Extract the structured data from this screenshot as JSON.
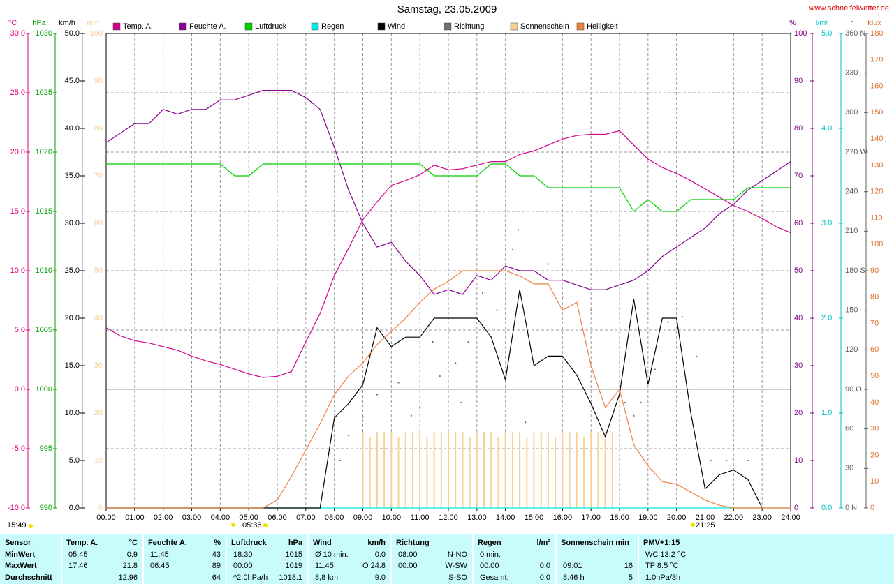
{
  "chart_data": {
    "type": "line",
    "title": "Samstag, 23.05.2009",
    "site": "www.schneifelwetter.de",
    "annotations": [
      "15:49",
      "05:36",
      "21:25"
    ],
    "xlim": [
      0,
      24
    ],
    "xticks": [
      {
        "value": 0,
        "label": "00:00"
      },
      {
        "value": 1,
        "label": "01:00"
      },
      {
        "value": 2,
        "label": "02:00"
      },
      {
        "value": 3,
        "label": "03:00"
      },
      {
        "value": 4,
        "label": "04:00"
      },
      {
        "value": 5,
        "label": "05:00"
      },
      {
        "value": 6,
        "label": "06:00"
      },
      {
        "value": 7,
        "label": "07:00"
      },
      {
        "value": 8,
        "label": "08:00"
      },
      {
        "value": 9,
        "label": "09:00"
      },
      {
        "value": 10,
        "label": "10:00"
      },
      {
        "value": 11,
        "label": "11:00"
      },
      {
        "value": 12,
        "label": "12:00"
      },
      {
        "value": 13,
        "label": "13:00"
      },
      {
        "value": 14,
        "label": "14:00"
      },
      {
        "value": 15,
        "label": "15:00"
      },
      {
        "value": 16,
        "label": "16:00"
      },
      {
        "value": 17,
        "label": "17:00"
      },
      {
        "value": 18,
        "label": "18:00"
      },
      {
        "value": 19,
        "label": "19:00"
      },
      {
        "value": 20,
        "label": "20:00"
      },
      {
        "value": 21,
        "label": "21:00"
      },
      {
        "value": 22,
        "label": "22:00"
      },
      {
        "value": 23,
        "label": "23:00"
      },
      {
        "value": 24,
        "label": "24:00"
      }
    ],
    "grid": true,
    "grid_axis": 0,
    "axes": [
      {
        "unit": "°C",
        "side": "left",
        "color": "#e0007f",
        "lim": [
          -10,
          30
        ],
        "ticks": [
          {
            "value": 30,
            "label": "30.0"
          },
          {
            "value": 25,
            "label": "25.0"
          },
          {
            "value": 20,
            "label": "20.0"
          },
          {
            "value": 15,
            "label": "15.0"
          },
          {
            "value": 10,
            "label": "10.0"
          },
          {
            "value": 5,
            "label": "5.0"
          },
          {
            "value": 0,
            "label": "0.0"
          },
          {
            "value": -5,
            "label": "-5.0"
          },
          {
            "value": -10,
            "label": "-10.0"
          }
        ]
      },
      {
        "unit": "hPa",
        "side": "left",
        "color": "#00a000",
        "lim": [
          990,
          1030
        ],
        "ticks": [
          1030,
          1025,
          1020,
          1015,
          1010,
          1005,
          1000,
          995,
          990
        ]
      },
      {
        "unit": "km/h",
        "side": "left",
        "color": "#000000",
        "lim": [
          0,
          50
        ],
        "ticks": [
          {
            "value": 50,
            "label": "50.0"
          },
          {
            "value": 45,
            "label": "45.0"
          },
          {
            "value": 40,
            "label": "40.0"
          },
          {
            "value": 35,
            "label": "35.0"
          },
          {
            "value": 30,
            "label": "30.0"
          },
          {
            "value": 25,
            "label": "25.0"
          },
          {
            "value": 20,
            "label": "20.0"
          },
          {
            "value": 15,
            "label": "15.0"
          },
          {
            "value": 10,
            "label": "10.0"
          },
          {
            "value": 5,
            "label": "5.0"
          },
          {
            "value": 0,
            "label": "0.0"
          }
        ]
      },
      {
        "unit": "min",
        "side": "left",
        "color": "#f5cf98",
        "lim": [
          0,
          100
        ],
        "ticks": [
          100,
          90,
          80,
          70,
          60,
          50,
          40,
          30,
          20,
          10,
          0
        ]
      },
      {
        "unit": "%",
        "side": "right",
        "color": "#800080",
        "lim": [
          0,
          100
        ],
        "ticks": [
          100,
          90,
          80,
          70,
          60,
          50,
          40,
          30,
          20,
          10,
          0
        ]
      },
      {
        "unit": "l/m²",
        "side": "right",
        "color": "#00c0c0",
        "lim": [
          0,
          5
        ],
        "ticks": [
          {
            "value": 5,
            "label": "5.0"
          },
          {
            "value": 4,
            "label": "4.0"
          },
          {
            "value": 3,
            "label": "3.0"
          },
          {
            "value": 2,
            "label": "2.0"
          },
          {
            "value": 1,
            "label": "1.0"
          },
          {
            "value": 0,
            "label": "0.0"
          }
        ]
      },
      {
        "unit": "°",
        "side": "right",
        "color": "#606060",
        "lim": [
          0,
          360
        ],
        "ticks": [
          {
            "value": 360,
            "label": "360 N"
          },
          330,
          300,
          {
            "value": 270,
            "label": "270 W"
          },
          240,
          210,
          {
            "value": 180,
            "label": "180 S"
          },
          150,
          120,
          {
            "value": 90,
            "label": "90 O"
          },
          60,
          30,
          {
            "value": 0,
            "label": "0 N"
          }
        ]
      },
      {
        "unit": "klux",
        "side": "right",
        "color": "#e07030",
        "lim": [
          0,
          180
        ],
        "ticks": [
          180,
          170,
          160,
          150,
          140,
          130,
          120,
          110,
          100,
          90,
          80,
          70,
          60,
          50,
          40,
          30,
          20,
          10,
          0
        ]
      }
    ],
    "x": [
      0,
      0.5,
      1,
      1.5,
      2,
      2.5,
      3,
      3.5,
      4,
      4.5,
      5,
      5.5,
      6,
      6.5,
      7,
      7.5,
      8,
      8.5,
      9,
      9.5,
      10,
      10.5,
      11,
      11.5,
      12,
      12.5,
      13,
      13.5,
      14,
      14.5,
      15,
      15.5,
      16,
      16.5,
      17,
      17.5,
      18,
      18.5,
      19,
      19.5,
      20,
      20.5,
      21,
      21.5,
      22,
      22.5,
      23,
      23.5,
      24
    ],
    "series": [
      {
        "name": "Temp. A.",
        "color": "#d4008a",
        "axis": 0,
        "kind": "line",
        "values": [
          5.2,
          4.5,
          4.1,
          3.9,
          3.6,
          3.3,
          2.8,
          2.4,
          2.1,
          1.7,
          1.3,
          1.0,
          1.1,
          1.5,
          4.0,
          6.4,
          9.6,
          11.9,
          14.3,
          15.8,
          17.2,
          17.6,
          18.1,
          18.9,
          18.5,
          18.6,
          18.9,
          19.2,
          19.2,
          19.8,
          20.1,
          20.6,
          21.1,
          21.4,
          21.5,
          21.5,
          21.8,
          20.6,
          19.4,
          18.7,
          18.2,
          17.6,
          16.9,
          16.2,
          15.5,
          15.0,
          14.4,
          13.7,
          13.2
        ]
      },
      {
        "name": "Feuchte A.",
        "color": "#8a0090",
        "axis": 4,
        "kind": "line",
        "values": [
          77,
          79,
          81,
          81,
          84,
          83,
          84,
          84,
          86,
          86,
          87,
          88,
          88,
          88,
          86.5,
          84,
          76,
          67,
          60,
          55,
          56,
          52,
          49,
          45,
          46,
          45,
          49,
          48,
          51,
          50,
          50,
          48,
          48,
          47,
          46,
          46,
          47,
          48,
          50,
          53,
          55,
          57,
          59,
          62,
          64,
          67,
          69,
          71,
          73
        ]
      },
      {
        "name": "Luftdruck",
        "color": "#00d000",
        "axis": 1,
        "kind": "line",
        "values": [
          1019,
          1019,
          1019,
          1019,
          1019,
          1019,
          1019,
          1019,
          1019,
          1018,
          1018,
          1019,
          1019,
          1019,
          1019,
          1019,
          1019,
          1019,
          1019,
          1019,
          1019,
          1019,
          1019,
          1018,
          1018,
          1018,
          1018,
          1019,
          1019,
          1018,
          1018,
          1017,
          1017,
          1017,
          1017,
          1017,
          1017,
          1015,
          1016,
          1015,
          1015,
          1016,
          1016,
          1016,
          1016,
          1017,
          1017,
          1017,
          1017
        ]
      },
      {
        "name": "Regen",
        "color": "#00e8e8",
        "axis": 5,
        "kind": "line",
        "values": [
          0,
          0,
          0,
          0,
          0,
          0,
          0,
          0,
          0,
          0,
          0,
          0,
          0,
          0,
          0,
          0,
          0,
          0,
          0,
          0,
          0,
          0,
          0,
          0,
          0,
          0,
          0,
          0,
          0,
          0,
          0,
          0,
          0,
          0,
          0,
          0,
          0,
          0,
          0,
          0,
          0,
          0,
          0,
          0,
          0,
          0,
          0,
          0,
          0
        ]
      },
      {
        "name": "Wind",
        "color": "#000000",
        "axis": 2,
        "kind": "line",
        "values": [
          0,
          0,
          0,
          0,
          0,
          0,
          0,
          0,
          0,
          0,
          0,
          0,
          0,
          0,
          0,
          0,
          9.5,
          11,
          13,
          19,
          17,
          18,
          18,
          20,
          20,
          20,
          20,
          18,
          13.5,
          23,
          15,
          16,
          16,
          14,
          11,
          7.5,
          12,
          22,
          13,
          20,
          20,
          10,
          2,
          3.5,
          4,
          3,
          0,
          null,
          null
        ]
      },
      {
        "name": "Richtung",
        "color": "#707070",
        "axis": 6,
        "kind": "dots",
        "x": [
          8.2,
          8.5,
          9,
          9.5,
          10.25,
          10.7,
          11,
          11.45,
          11.7,
          12.25,
          12.45,
          12.7,
          13.2,
          13.7,
          14.25,
          14.45,
          14.7,
          15.5,
          16,
          17,
          18.2,
          18.5,
          18.75,
          19.25,
          19.7,
          20.2,
          20.7,
          21.2,
          21.75,
          22.5
        ],
        "values": [
          36,
          55,
          69,
          86,
          95,
          70,
          76,
          126,
          100,
          110,
          80,
          126,
          163,
          150,
          196,
          211,
          65,
          185,
          160,
          150,
          80,
          70,
          80,
          105,
          141,
          145,
          115,
          36,
          36,
          36
        ]
      },
      {
        "name": "Sonnenschein",
        "color": "#f8d098",
        "axis": 3,
        "kind": "bars",
        "x": [
          9,
          9.25,
          9.5,
          9.75,
          10,
          10.25,
          10.5,
          10.75,
          11,
          11.25,
          11.5,
          11.75,
          12,
          12.25,
          12.5,
          12.75,
          13,
          13.25,
          13.5,
          13.75,
          14,
          14.25,
          14.5,
          14.75,
          15,
          15.25,
          15.5,
          15.75,
          16,
          16.25,
          16.5,
          16.75,
          17,
          17.25,
          17.5,
          17.75
        ],
        "values": [
          16,
          15,
          16,
          16,
          16,
          15,
          16,
          16,
          16,
          15,
          16,
          16,
          16,
          16,
          16,
          15,
          16,
          16,
          16,
          15,
          16,
          16,
          16,
          15,
          16,
          16,
          16,
          15,
          16,
          16,
          16,
          15,
          16,
          16,
          16,
          16
        ]
      },
      {
        "name": "Helligkeit",
        "color": "#f08040",
        "axis": 7,
        "kind": "line",
        "values": [
          0,
          0,
          0,
          0,
          0,
          0,
          0,
          0,
          0,
          0,
          0,
          0,
          3,
          12,
          22,
          32,
          43,
          50,
          55,
          62,
          67,
          72,
          78,
          83,
          86,
          90,
          90,
          90,
          90,
          88,
          85,
          85,
          75,
          78,
          54,
          38,
          45,
          24,
          16,
          10,
          9,
          6,
          3,
          1,
          0,
          0,
          0,
          0,
          0
        ]
      }
    ]
  },
  "summary": {
    "row_labels": [
      "Sensor",
      "MinWert",
      "MaxWert",
      "Durchschnitt"
    ],
    "groups": [
      {
        "title": "Temp. A.",
        "unit": "°C",
        "rows": [
          [
            "05:45",
            "0.9"
          ],
          [
            "17:46",
            "21.8"
          ],
          [
            null,
            "12.96"
          ]
        ]
      },
      {
        "title": "Feuchte A.",
        "unit": "%",
        "rows": [
          [
            "11:45",
            "43"
          ],
          [
            "06:45",
            "89"
          ],
          [
            null,
            "64"
          ]
        ]
      },
      {
        "title": "Luftdruck",
        "unit": "hPa",
        "rows": [
          [
            "18:30",
            "1015"
          ],
          [
            "00:00",
            "1019"
          ],
          [
            "^2.0hPa/h",
            "1018.1"
          ]
        ]
      },
      {
        "title": "Wind",
        "unit": "km/h",
        "rows": [
          [
            "Ø 10 min.",
            "0.0"
          ],
          [
            "11:45",
            "O 24.8"
          ],
          [
            "8,8 km",
            "9.0"
          ]
        ]
      },
      {
        "title": "Richtung",
        "unit": null,
        "rows": [
          [
            "08:00",
            "N-NO"
          ],
          [
            "00:00",
            "W-SW"
          ],
          [
            null,
            "S-SO"
          ]
        ]
      },
      {
        "title": "Regen",
        "unit": "l/m²",
        "rows": [
          [
            "0 min.",
            null
          ],
          [
            "00:00",
            "0.0"
          ],
          [
            "Gesamt:",
            "0.0"
          ]
        ]
      },
      {
        "title": "Sonnenschein min",
        "unit": null,
        "rows": [
          [
            null,
            null
          ],
          [
            "09:01",
            "16"
          ],
          [
            "8:46 h",
            "5"
          ]
        ]
      },
      {
        "title": "PMV+1:15",
        "unit": null,
        "rows": [
          [
            "WC 13.2 °C",
            null
          ],
          [
            "TP 8.5 °C",
            null
          ],
          [
            "1.0hPa/3h",
            null
          ]
        ]
      }
    ]
  }
}
